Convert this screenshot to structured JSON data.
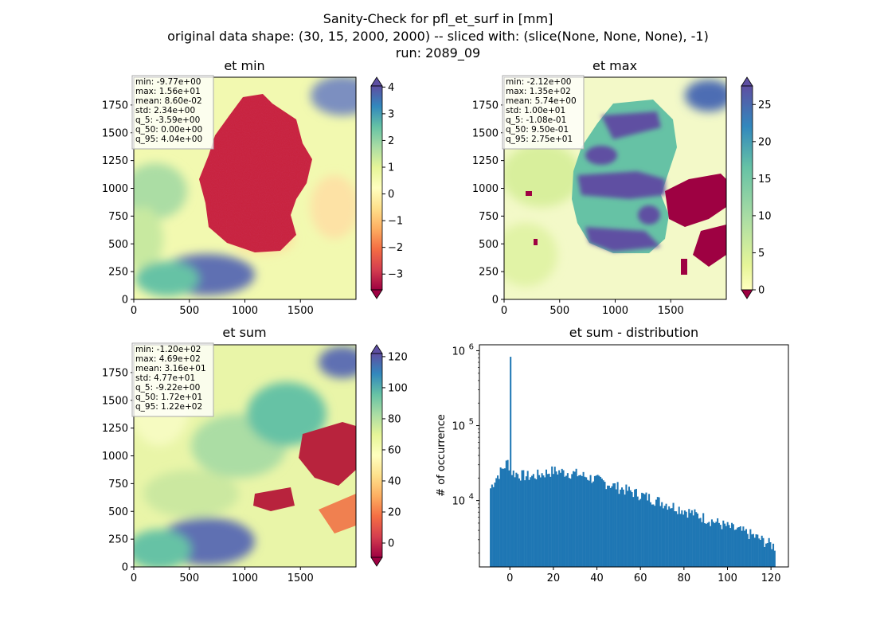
{
  "figure": {
    "title_lines": [
      "Sanity-Check for pfl_et_surf in [mm]",
      "original data shape: (30, 15, 2000, 2000) -- sliced with: (slice(None, None, None), -1)",
      "run: 2089_09"
    ]
  },
  "colormap": {
    "name": "Spectral",
    "stops": [
      "#9e0142",
      "#d53e4f",
      "#f46d43",
      "#fdae61",
      "#fee08b",
      "#ffffbf",
      "#e6f598",
      "#abdda4",
      "#66c2a5",
      "#3288bd",
      "#5e4fa2"
    ]
  },
  "chart_data": [
    {
      "type": "heatmap",
      "title": "et min",
      "xlim": [
        0,
        2000
      ],
      "ylim": [
        0,
        2000
      ],
      "xticks": [
        "0",
        "500",
        "1000",
        "1500"
      ],
      "yticks": [
        "0",
        "250",
        "500",
        "750",
        "1000",
        "1250",
        "1500",
        "1750"
      ],
      "colorbar": {
        "range": [
          -3.59,
          4.04
        ],
        "ticks": [
          "−3",
          "−2",
          "−1",
          "0",
          "1",
          "2",
          "3",
          "4"
        ],
        "tick_values": [
          -3,
          -2,
          -1,
          0,
          1,
          2,
          3,
          4
        ],
        "extend": "both"
      },
      "stats": [
        "min: -9.77e+00",
        "max: 1.56e+01",
        "mean: 8.60e-02",
        "std: 2.34e+00",
        "q_5: -3.59e+00",
        "q_50: 0.00e+00",
        "q_95: 4.04e+00"
      ]
    },
    {
      "type": "heatmap",
      "title": "et max",
      "xlim": [
        0,
        2000
      ],
      "ylim": [
        0,
        2000
      ],
      "xticks": [
        "0",
        "500",
        "1000",
        "1500"
      ],
      "yticks": [
        "0",
        "250",
        "500",
        "750",
        "1000",
        "1250",
        "1500",
        "1750"
      ],
      "colorbar": {
        "range": [
          0,
          27.5
        ],
        "ticks": [
          "0",
          "5",
          "10",
          "15",
          "20",
          "25"
        ],
        "tick_values": [
          0,
          5,
          10,
          15,
          20,
          25
        ],
        "extend": "both"
      },
      "stats": [
        "min: -2.12e+00",
        "max: 1.35e+02",
        "mean: 5.74e+00",
        "std: 1.00e+01",
        "q_5: -1.08e-01",
        "q_50: 9.50e-01",
        "q_95: 2.75e+01"
      ]
    },
    {
      "type": "heatmap",
      "title": "et sum",
      "xlim": [
        0,
        2000
      ],
      "ylim": [
        0,
        2000
      ],
      "xticks": [
        "0",
        "500",
        "1000",
        "1500"
      ],
      "yticks": [
        "0",
        "250",
        "500",
        "750",
        "1000",
        "1250",
        "1500",
        "1750"
      ],
      "colorbar": {
        "range": [
          -9.22,
          122
        ],
        "ticks": [
          "0",
          "20",
          "40",
          "60",
          "80",
          "100",
          "120"
        ],
        "tick_values": [
          0,
          20,
          40,
          60,
          80,
          100,
          120
        ],
        "extend": "both"
      },
      "stats": [
        "min: -1.20e+02",
        "max: 4.69e+02",
        "mean: 3.16e+01",
        "std: 4.77e+01",
        "q_5: -9.22e+00",
        "q_50: 1.72e+01",
        "q_95: 1.22e+02"
      ]
    },
    {
      "type": "bar",
      "title": "et sum - distribution",
      "ylabel": "# of occurrence",
      "yscale": "log",
      "xlim": [
        -14,
        128
      ],
      "ylim": [
        1300,
        1200000
      ],
      "xticks": [
        "0",
        "20",
        "40",
        "60",
        "80",
        "100",
        "120"
      ],
      "xtick_values": [
        0,
        20,
        40,
        60,
        80,
        100,
        120
      ],
      "yticks": [
        "10^4",
        "10^5",
        "10^6"
      ],
      "ytick_values": [
        10000,
        100000,
        1000000
      ],
      "bin_range": [
        -9.22,
        122
      ],
      "bins": 200,
      "approx_counts_at": [
        {
          "x": -9.2,
          "y": 14000
        },
        {
          "x": -7,
          "y": 19000
        },
        {
          "x": -4,
          "y": 25000
        },
        {
          "x": -1,
          "y": 33000
        },
        {
          "x": 0,
          "y": 830000
        },
        {
          "x": 1,
          "y": 24000
        },
        {
          "x": 5,
          "y": 22000
        },
        {
          "x": 10,
          "y": 21000
        },
        {
          "x": 20,
          "y": 25000
        },
        {
          "x": 30,
          "y": 23000
        },
        {
          "x": 40,
          "y": 19000
        },
        {
          "x": 50,
          "y": 15000
        },
        {
          "x": 60,
          "y": 12000
        },
        {
          "x": 70,
          "y": 9500
        },
        {
          "x": 80,
          "y": 7500
        },
        {
          "x": 90,
          "y": 5800
        },
        {
          "x": 100,
          "y": 4500
        },
        {
          "x": 110,
          "y": 3600
        },
        {
          "x": 120,
          "y": 2600
        },
        {
          "x": 122,
          "y": 2400
        }
      ],
      "color": "#1f77b4"
    }
  ]
}
